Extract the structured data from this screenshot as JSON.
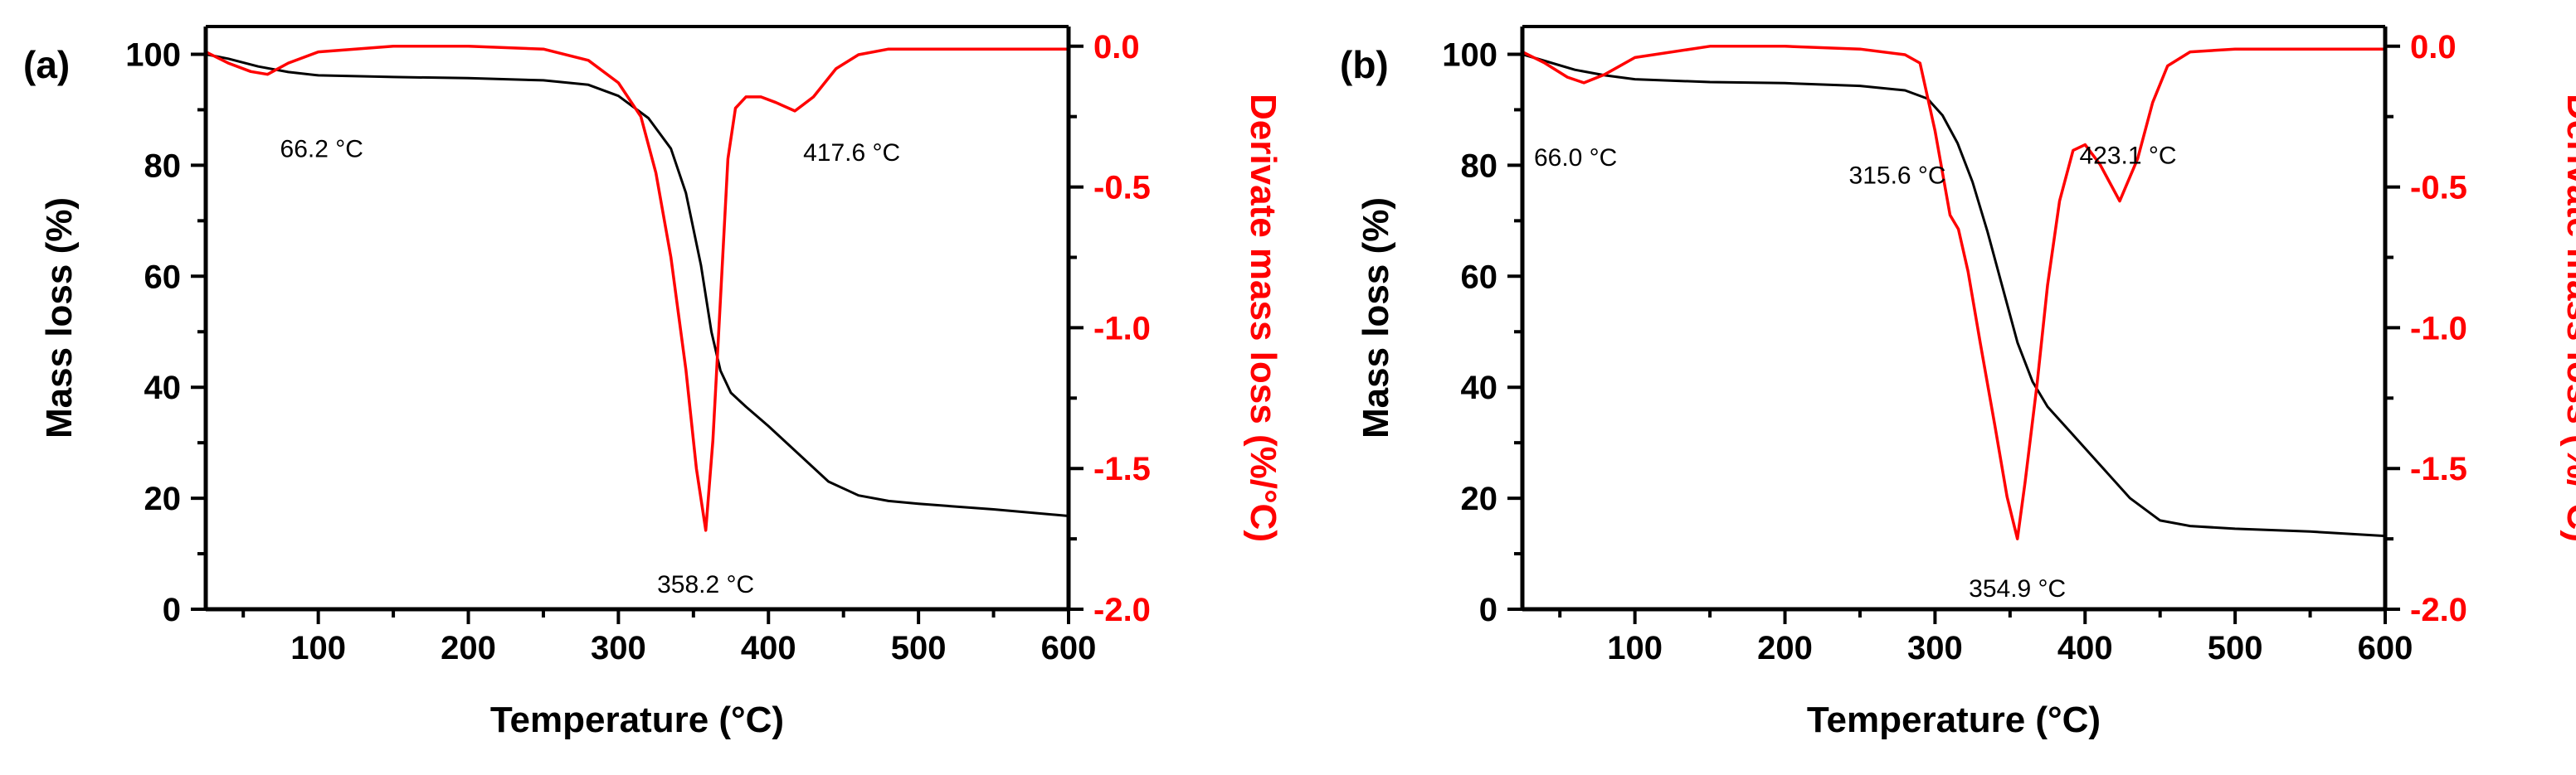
{
  "colors": {
    "mass": "#000000",
    "derivative": "#ff0000"
  },
  "chart_data": [
    {
      "type": "line",
      "panel_label": "(a)",
      "xlabel": "Temperature (°C)",
      "ylabel_left": "Mass loss (%)",
      "ylabel_right": "Derivate mass loss (%/°C)",
      "xlim": [
        25,
        600
      ],
      "ylim_left": [
        0,
        105
      ],
      "ylim_right": [
        -2.0,
        0.07
      ],
      "x_ticks": [
        "100",
        "200",
        "300",
        "400",
        "500",
        "600"
      ],
      "y_left_ticks": [
        "0",
        "20",
        "40",
        "60",
        "80",
        "100"
      ],
      "y_right_ticks": [
        "0.0",
        "-0.5",
        "-1.0",
        "-1.5",
        "-2.0"
      ],
      "series": [
        {
          "name": "Mass loss",
          "axis": "left",
          "color": "#000000",
          "x": [
            25,
            40,
            60,
            80,
            100,
            150,
            200,
            250,
            280,
            300,
            320,
            335,
            345,
            355,
            362,
            368,
            375,
            385,
            400,
            420,
            440,
            460,
            480,
            500,
            550,
            600
          ],
          "y": [
            100,
            99.2,
            97.8,
            96.8,
            96.2,
            95.9,
            95.7,
            95.3,
            94.5,
            92.5,
            88.5,
            83,
            75,
            62,
            50,
            43,
            39,
            36.5,
            33,
            28,
            23,
            20.5,
            19.5,
            19,
            18,
            16.8
          ]
        },
        {
          "name": "Derivative mass loss",
          "axis": "right",
          "color": "#ff0000",
          "x": [
            25,
            40,
            55,
            66.2,
            80,
            100,
            150,
            200,
            250,
            280,
            300,
            315,
            325,
            335,
            345,
            352,
            358.2,
            363,
            368,
            373,
            378,
            385,
            395,
            405,
            417.6,
            430,
            445,
            460,
            480,
            500,
            550,
            600
          ],
          "y": [
            -0.02,
            -0.06,
            -0.09,
            -0.1,
            -0.06,
            -0.02,
            0.0,
            0.0,
            -0.01,
            -0.05,
            -0.13,
            -0.25,
            -0.45,
            -0.75,
            -1.15,
            -1.5,
            -1.72,
            -1.4,
            -0.9,
            -0.4,
            -0.22,
            -0.18,
            -0.18,
            -0.2,
            -0.23,
            -0.18,
            -0.08,
            -0.03,
            -0.01,
            -0.01,
            -0.01,
            -0.01
          ]
        }
      ],
      "annotations": [
        {
          "text": "66.2 °C",
          "x": 66.2
        },
        {
          "text": "358.2 °C",
          "x": 358.2
        },
        {
          "text": "417.6 °C",
          "x": 417.6
        }
      ]
    },
    {
      "type": "line",
      "panel_label": "(b)",
      "xlabel": "Temperature (°C)",
      "ylabel_left": "Mass loss (%)",
      "ylabel_right": "Derivate mass loss (%/°C)",
      "xlim": [
        25,
        600
      ],
      "ylim_left": [
        0,
        105
      ],
      "ylim_right": [
        -2.0,
        0.07
      ],
      "x_ticks": [
        "100",
        "200",
        "300",
        "400",
        "500",
        "600"
      ],
      "y_left_ticks": [
        "0",
        "20",
        "40",
        "60",
        "80",
        "100"
      ],
      "y_right_ticks": [
        "0.0",
        "-0.5",
        "-1.0",
        "-1.5",
        "-2.0"
      ],
      "series": [
        {
          "name": "Mass loss",
          "axis": "left",
          "color": "#000000",
          "x": [
            25,
            40,
            60,
            80,
            100,
            150,
            200,
            250,
            280,
            295,
            305,
            315,
            325,
            335,
            345,
            355,
            365,
            375,
            390,
            410,
            430,
            450,
            470,
            500,
            550,
            600
          ],
          "y": [
            100,
            98.8,
            97.2,
            96.2,
            95.5,
            95,
            94.8,
            94.3,
            93.5,
            92,
            89,
            84,
            77,
            68,
            58,
            48,
            41,
            36.5,
            32,
            26,
            20,
            16,
            15,
            14.5,
            14,
            13.2
          ]
        },
        {
          "name": "Derivative mass loss",
          "axis": "right",
          "color": "#ff0000",
          "x": [
            25,
            40,
            55,
            66.0,
            80,
            100,
            150,
            200,
            250,
            280,
            290,
            300,
            310,
            315.6,
            322,
            330,
            340,
            348,
            354.9,
            360,
            368,
            375,
            383,
            392,
            400,
            410,
            423.1,
            435,
            445,
            455,
            470,
            500,
            550,
            600
          ],
          "y": [
            -0.02,
            -0.06,
            -0.11,
            -0.13,
            -0.1,
            -0.04,
            0.0,
            0.0,
            -0.01,
            -0.03,
            -0.06,
            -0.3,
            -0.6,
            -0.65,
            -0.8,
            -1.05,
            -1.35,
            -1.6,
            -1.75,
            -1.55,
            -1.2,
            -0.85,
            -0.55,
            -0.37,
            -0.35,
            -0.42,
            -0.55,
            -0.4,
            -0.2,
            -0.07,
            -0.02,
            -0.01,
            -0.01,
            -0.01
          ]
        }
      ],
      "annotations": [
        {
          "text": "66.0 °C",
          "x": 66.0
        },
        {
          "text": "315.6 °C",
          "x": 315.6
        },
        {
          "text": "354.9 °C",
          "x": 354.9
        },
        {
          "text": "423.1 °C",
          "x": 423.1
        }
      ]
    }
  ]
}
